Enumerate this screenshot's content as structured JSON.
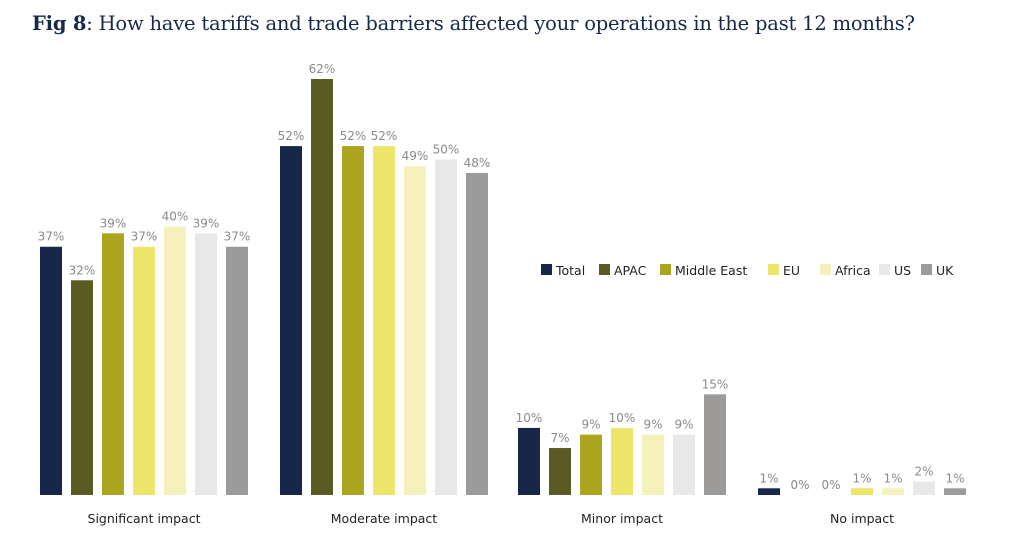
{
  "title": {
    "prefix": "Fig 8",
    "text": ": How have tariffs and trade barriers affected your operations in the past 12 months?"
  },
  "chart_data": {
    "type": "bar",
    "title": "Fig 8: How have tariffs and trade barriers affected your operations in the past 12 months?",
    "xlabel": "",
    "ylabel": "",
    "ylim": [
      0,
      62
    ],
    "grid": false,
    "legend_position": "right",
    "value_suffix": "%",
    "categories": [
      "Significant impact",
      "Moderate impact",
      "Minor impact",
      "No impact"
    ],
    "series": [
      {
        "name": "Total",
        "color": "#17274a",
        "values": [
          37,
          52,
          10,
          1
        ]
      },
      {
        "name": "APAC",
        "color": "#5a5a22",
        "values": [
          32,
          62,
          7,
          0
        ]
      },
      {
        "name": "Middle East",
        "color": "#aba41e",
        "values": [
          39,
          52,
          9,
          0
        ]
      },
      {
        "name": "EU",
        "color": "#ede56a",
        "values": [
          37,
          52,
          10,
          1
        ]
      },
      {
        "name": "Africa",
        "color": "#f6f1bb",
        "values": [
          40,
          49,
          9,
          1
        ]
      },
      {
        "name": "US",
        "color": "#e8e8e8",
        "values": [
          39,
          50,
          9,
          2
        ]
      },
      {
        "name": "UK",
        "color": "#9c9b99",
        "values": [
          37,
          48,
          15,
          1
        ]
      }
    ]
  }
}
